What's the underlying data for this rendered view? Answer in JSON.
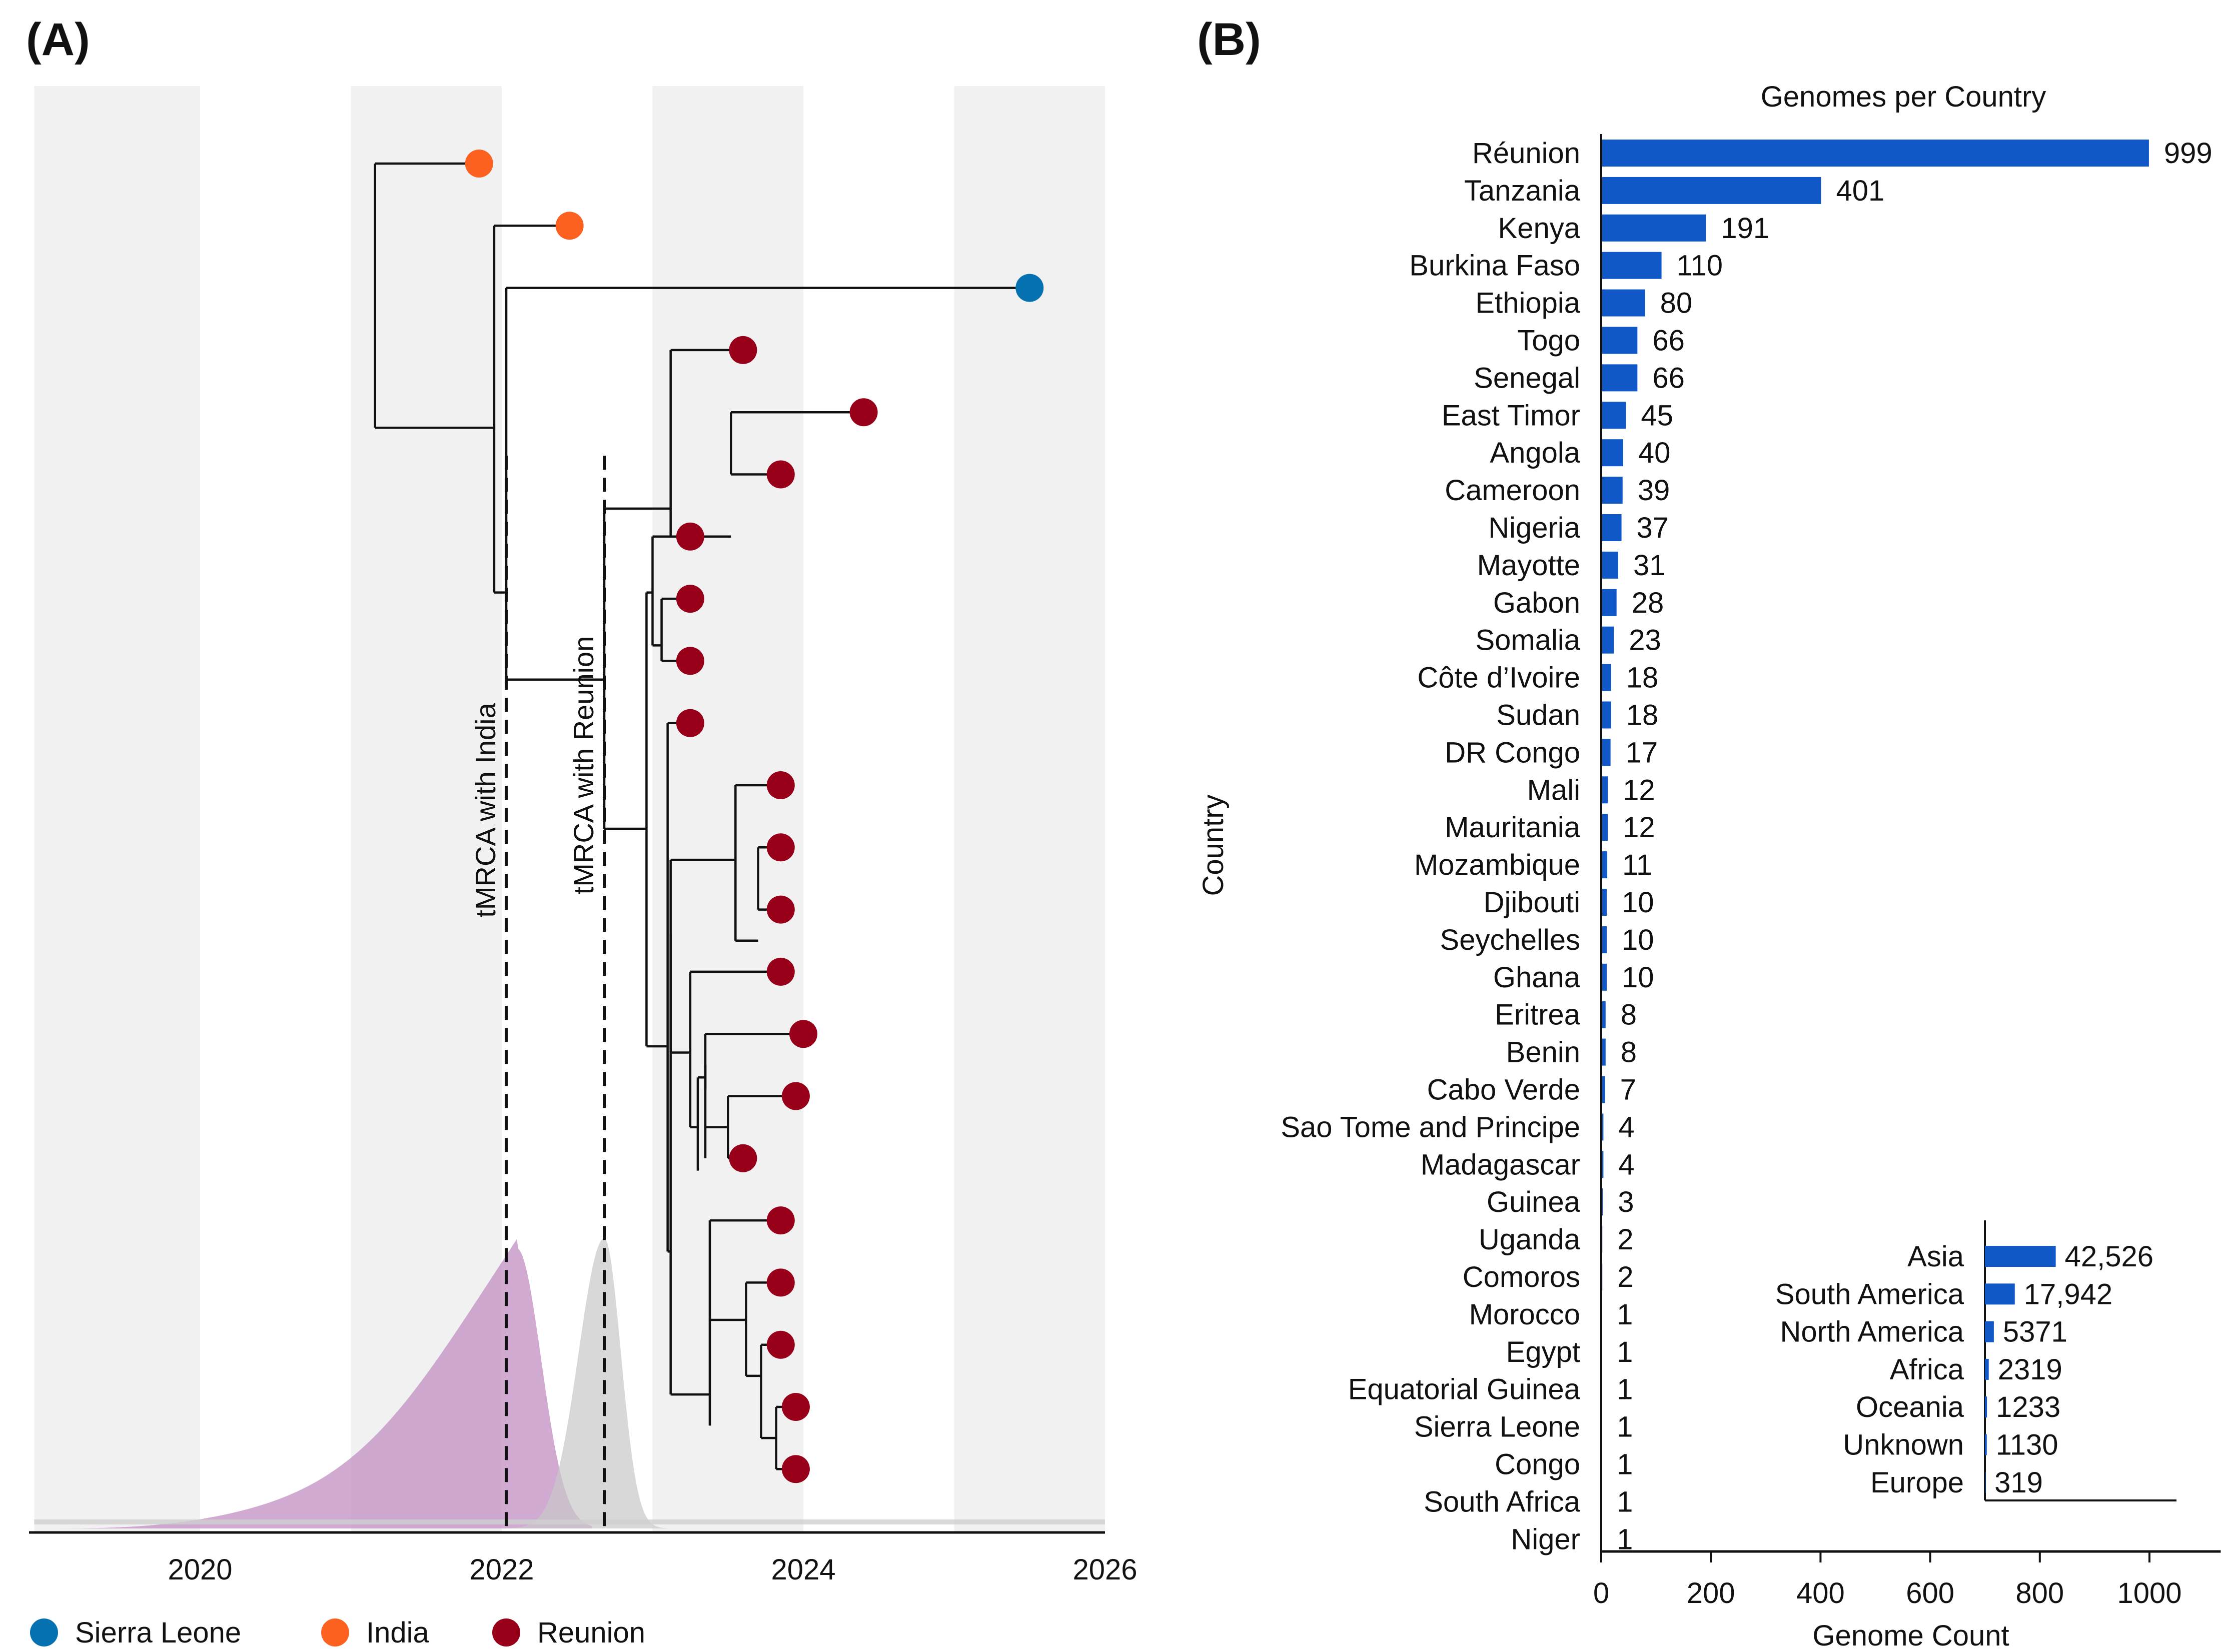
{
  "panel_a": {
    "label": "(A)",
    "annotations": [
      "tMRCA with India",
      "tMRCA with Reunion"
    ],
    "legend": [
      {
        "label": "Sierra Leone",
        "color": "#0571b0"
      },
      {
        "label": "India",
        "color": "#fd6120"
      },
      {
        "label": "Reunion",
        "color": "#980019"
      }
    ]
  },
  "panel_b": {
    "label": "(B)"
  },
  "chart_data": [
    {
      "type": "tree",
      "description": "Time-scaled phylogeny with tMRCA density distributions",
      "xlabel": "",
      "xlim": [
        2018.9,
        2026
      ],
      "xticks": [
        "2020",
        "2022",
        "2024",
        "2026"
      ],
      "xtick_values": [
        2020,
        2022,
        2024,
        2026
      ],
      "shaded_bands": [
        [
          2018.9,
          2020
        ],
        [
          2021,
          2022
        ],
        [
          2023,
          2024
        ],
        [
          2025,
          2026
        ]
      ],
      "band_color": "#f1f1f1",
      "tips": [
        {
          "country": "India",
          "date": 2021.85
        },
        {
          "country": "India",
          "date": 2022.45
        },
        {
          "country": "Sierra Leone",
          "date": 2025.5
        },
        {
          "country": "Reunion",
          "date": 2023.6
        },
        {
          "country": "Reunion",
          "date": 2024.4
        },
        {
          "country": "Reunion",
          "date": 2023.85
        },
        {
          "country": "Reunion",
          "date": 2023.25
        },
        {
          "country": "Reunion",
          "date": 2023.25
        },
        {
          "country": "Reunion",
          "date": 2023.25
        },
        {
          "country": "Reunion",
          "date": 2023.25
        },
        {
          "country": "Reunion",
          "date": 2023.85
        },
        {
          "country": "Reunion",
          "date": 2023.85
        },
        {
          "country": "Reunion",
          "date": 2023.85
        },
        {
          "country": "Reunion",
          "date": 2023.85
        },
        {
          "country": "Reunion",
          "date": 2024.0
        },
        {
          "country": "Reunion",
          "date": 2023.95
        },
        {
          "country": "Reunion",
          "date": 2023.6
        },
        {
          "country": "Reunion",
          "date": 2023.85
        },
        {
          "country": "Reunion",
          "date": 2023.85
        },
        {
          "country": "Reunion",
          "date": 2023.85
        },
        {
          "country": "Reunion",
          "date": 2023.95
        },
        {
          "country": "Reunion",
          "date": 2023.95
        }
      ],
      "tmrca": [
        {
          "label": "tMRCA with India",
          "date": 2022.03,
          "density_color": "#c28dc3",
          "density_peak": 2022.1,
          "density_range": [
            2018.9,
            2022.6
          ]
        },
        {
          "label": "tMRCA with Reunion",
          "date": 2022.68,
          "density_color": "#c8c8c8",
          "density_peak": 2022.68,
          "density_range": [
            2022.0,
            2023.1
          ]
        }
      ],
      "legend": [
        "Sierra Leone",
        "India",
        "Reunion"
      ],
      "legend_position": "bottom-left"
    },
    {
      "type": "bar",
      "orientation": "horizontal",
      "title": "Genomes per Country",
      "xlabel": "Genome Count",
      "ylabel": "Country",
      "xlim": [
        0,
        1130
      ],
      "xticks": [
        "0",
        "200",
        "400",
        "600",
        "800",
        "1000"
      ],
      "xtick_values": [
        0,
        200,
        400,
        600,
        800,
        1000
      ],
      "bar_color": "#1058c8",
      "categories": [
        "Réunion",
        "Tanzania",
        "Kenya",
        "Burkina Faso",
        "Ethiopia",
        "Togo",
        "Senegal",
        "East Timor",
        "Angola",
        "Cameroon",
        "Nigeria",
        "Mayotte",
        "Gabon",
        "Somalia",
        "Côte d’Ivoire",
        "Sudan",
        "DR Congo",
        "Mali",
        "Mauritania",
        "Mozambique",
        "Djibouti",
        "Seychelles",
        "Ghana",
        "Eritrea",
        "Benin",
        "Cabo Verde",
        "Sao Tome and Principe",
        "Madagascar",
        "Guinea",
        "Uganda",
        "Comoros",
        "Morocco",
        "Egypt",
        "Equatorial Guinea",
        "Sierra Leone",
        "Congo",
        "South Africa",
        "Niger"
      ],
      "values": [
        999,
        401,
        191,
        110,
        80,
        66,
        66,
        45,
        40,
        39,
        37,
        31,
        28,
        23,
        18,
        18,
        17,
        12,
        12,
        11,
        10,
        10,
        10,
        8,
        8,
        7,
        4,
        4,
        3,
        2,
        2,
        1,
        1,
        1,
        1,
        1,
        1,
        1
      ],
      "value_labels": [
        "999",
        "401",
        "191",
        "110",
        "80",
        "66",
        "66",
        "45",
        "40",
        "39",
        "37",
        "31",
        "28",
        "23",
        "18",
        "18",
        "17",
        "12",
        "12",
        "11",
        "10",
        "10",
        "10",
        "8",
        "8",
        "7",
        "4",
        "4",
        "3",
        "2",
        "2",
        "1",
        "1",
        "1",
        "1",
        "1",
        "1",
        "1"
      ]
    },
    {
      "type": "bar",
      "orientation": "horizontal",
      "title": "",
      "inset": true,
      "bar_color": "#1058c8",
      "xlim": [
        0,
        115000
      ],
      "categories": [
        "Asia",
        "South America",
        "North America",
        "Africa",
        "Oceania",
        "Unknown",
        "Europe"
      ],
      "values": [
        42526,
        17942,
        5371,
        2319,
        1233,
        1130,
        319
      ],
      "value_labels": [
        "42,526",
        "17,942",
        "5371",
        "2319",
        "1233",
        "1130",
        "319"
      ]
    }
  ]
}
